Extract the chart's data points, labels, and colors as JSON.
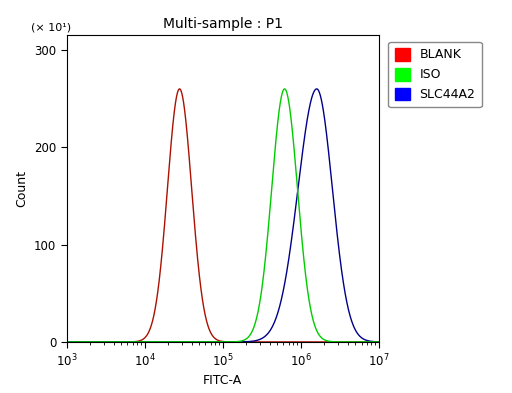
{
  "title": "Multi-sample : P1",
  "xlabel": "FITC-A",
  "ylabel": "Count",
  "ylabel_secondary": "(× 10¹)",
  "xlim_log": [
    1000.0,
    10000000.0
  ],
  "ylim": [
    0,
    315
  ],
  "yticks": [
    0,
    100,
    200,
    300
  ],
  "background_color": "#ffffff",
  "plot_bg_color": "#ffffff",
  "curves": [
    {
      "label": "BLANK",
      "color": "#aa1100",
      "peak_x": 28000,
      "peak_y": 260,
      "sigma_log": 0.155,
      "skew": 0.0
    },
    {
      "label": "ISO",
      "color": "#00cc00",
      "peak_x": 620000,
      "peak_y": 260,
      "sigma_log": 0.165,
      "skew": 0.0
    },
    {
      "label": "SLC44A2",
      "color": "#000088",
      "peak_x": 1600000,
      "peak_y": 260,
      "sigma_log": 0.22,
      "skew": -0.3
    }
  ],
  "legend_colors": [
    "#ff0000",
    "#00ff00",
    "#0000ff"
  ],
  "legend_labels": [
    "BLANK",
    "ISO",
    "SLC44A2"
  ],
  "title_fontsize": 10,
  "axis_label_fontsize": 9,
  "tick_fontsize": 8.5,
  "legend_fontsize": 9
}
